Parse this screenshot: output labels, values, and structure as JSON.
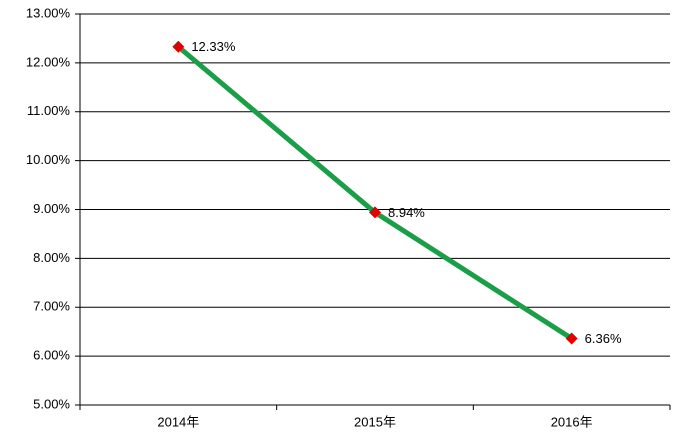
{
  "chart_data": {
    "type": "line",
    "categories": [
      "2014年",
      "2015年",
      "2016年"
    ],
    "series": [
      {
        "color": "#1a9e48",
        "marker_color": "#e00000",
        "values": [
          12.33,
          8.94,
          6.36
        ],
        "value_labels": [
          "12.33%",
          "8.94%",
          "6.36%"
        ]
      }
    ],
    "ylim": [
      5,
      13
    ],
    "yticks": [
      {
        "value": 5,
        "label": "5.00%"
      },
      {
        "value": 6,
        "label": "6.00%"
      },
      {
        "value": 7,
        "label": "7.00%"
      },
      {
        "value": 8,
        "label": "8.00%"
      },
      {
        "value": 9,
        "label": "9.00%"
      },
      {
        "value": 10,
        "label": "10.00%"
      },
      {
        "value": 11,
        "label": "11.00%"
      },
      {
        "value": 12,
        "label": "12.00%"
      },
      {
        "value": 13,
        "label": "13.00%"
      }
    ],
    "grid": true
  }
}
